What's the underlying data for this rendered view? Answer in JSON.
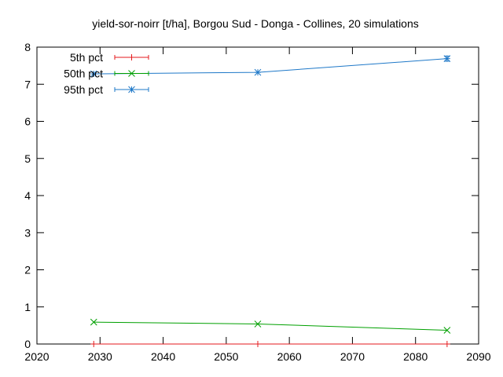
{
  "chart_data": {
    "type": "line",
    "title": "yield-sor-noirr [t/ha], Borgou Sud - Donga - Collines, 20 simulations",
    "xlabel": "",
    "ylabel": "",
    "xlim": [
      2020,
      2090
    ],
    "ylim": [
      0,
      8
    ],
    "xticks": [
      "2020",
      "2030",
      "2040",
      "2050",
      "2060",
      "2070",
      "2080",
      "2090"
    ],
    "yticks": [
      "0",
      "1",
      "2",
      "3",
      "4",
      "5",
      "6",
      "7",
      "8"
    ],
    "grid": false,
    "legend_position": "top-left",
    "series": [
      {
        "name": "5th pct",
        "color": "#e41a1c",
        "marker": "plus",
        "points": [
          {
            "x": 2029,
            "y": 0.0,
            "err": 0.0
          },
          {
            "x": 2055,
            "y": 0.0,
            "err": 0.0
          },
          {
            "x": 2085,
            "y": 0.0,
            "err": 0.0
          }
        ]
      },
      {
        "name": "50th pct",
        "color": "#00a000",
        "marker": "x",
        "points": [
          {
            "x": 2029,
            "y": 0.59,
            "err": 0.0
          },
          {
            "x": 2055,
            "y": 0.54,
            "err": 0.0
          },
          {
            "x": 2085,
            "y": 0.37,
            "err": 0.0
          }
        ]
      },
      {
        "name": "95th pct",
        "color": "#1e78c8",
        "marker": "star",
        "points": [
          {
            "x": 2029,
            "y": 7.28,
            "err": 0.0
          },
          {
            "x": 2055,
            "y": 7.32,
            "err": 0.0
          },
          {
            "x": 2085,
            "y": 7.69,
            "err": 0.07
          }
        ]
      }
    ]
  }
}
